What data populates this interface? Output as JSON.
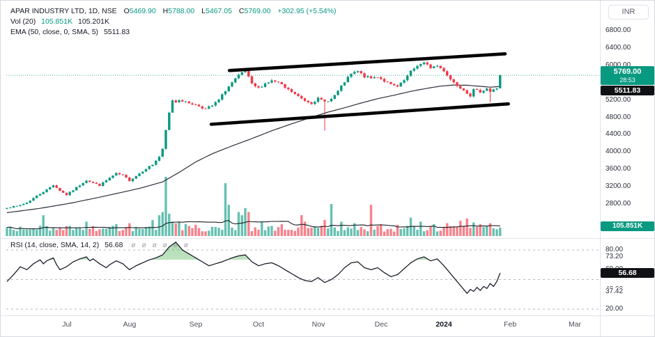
{
  "header": {
    "title": "APAR INDUSTRY LTD, 1D, NSE",
    "ohlc": [
      {
        "label": "O",
        "value": "5469.90"
      },
      {
        "label": "H",
        "value": "5788.00"
      },
      {
        "label": "L",
        "value": "5467.05"
      },
      {
        "label": "C",
        "value": "5769.00"
      }
    ],
    "change": "+302.95 (+5.54%)",
    "vol_label": "Vol (20)",
    "vol_value": "105.851K",
    "vol_ma_value": "105.201K",
    "ema_label": "EMA (50, close, 0, SMA, 5)",
    "ema_value": "5511.83"
  },
  "rsi_legend": {
    "label": "RSI (14, close, SMA, 14, 2)",
    "value": "56.68",
    "ghosts": [
      "ø",
      "ø",
      "ø",
      "ø",
      "ø",
      "ø"
    ]
  },
  "price_axis": {
    "currency": "INR",
    "ticks": [
      {
        "label": "6800.00",
        "value": 6800
      },
      {
        "label": "6400.00",
        "value": 6400
      },
      {
        "label": "6000.00",
        "value": 6000
      },
      {
        "label": "5600.00",
        "value": 5600
      },
      {
        "label": "5200.00",
        "value": 5200
      },
      {
        "label": "4800.00",
        "value": 4800
      },
      {
        "label": "4400.00",
        "value": 4400
      },
      {
        "label": "4000.00",
        "value": 4000
      },
      {
        "label": "3600.00",
        "value": 3600
      },
      {
        "label": "3200.00",
        "value": 3200
      },
      {
        "label": "2800.00",
        "value": 2800
      }
    ],
    "last_price_badge": {
      "price": "5769.00",
      "countdown": "28:53"
    },
    "ema_badge": "5511.83",
    "volume_badge": "105.851K"
  },
  "rsi_axis": {
    "ticks": [
      {
        "label": "80.00",
        "value": 80
      },
      {
        "label": "73.20",
        "value": 73.2
      },
      {
        "label": "60.00",
        "value": 60
      },
      {
        "label": "40.00",
        "value": 40
      },
      {
        "label": "37.42",
        "value": 37.42
      },
      {
        "label": "20.00",
        "value": 20
      }
    ],
    "badge": "56.68"
  },
  "time_axis": {
    "labels": [
      {
        "text": "Jul",
        "day": 18
      },
      {
        "text": "Aug",
        "day": 37
      },
      {
        "text": "Sep",
        "day": 57
      },
      {
        "text": "Oct",
        "day": 76
      },
      {
        "text": "Nov",
        "day": 94
      },
      {
        "text": "Dec",
        "day": 113
      },
      {
        "text": "2024",
        "day": 132,
        "bold": true
      },
      {
        "text": "Feb",
        "day": 152
      },
      {
        "text": "Mar",
        "day": 171.5
      }
    ]
  },
  "chart_data": {
    "type": "candlestick",
    "title": "APAR INDUSTRY LTD daily with volume, EMA(50), RSI(14) and hand-drawn ascending channel",
    "symbol": "APAR INDUSTRY LTD",
    "interval": "1D",
    "exchange": "NSE",
    "candle_count": 150,
    "price_axis_range": [
      2800,
      6800
    ],
    "price_tick_step": 400,
    "last_candle": {
      "open": 5469.9,
      "high": 5788.0,
      "low": 5467.05,
      "close": 5769.0,
      "volume_k": 105.851
    },
    "last_price": 5769.0,
    "close_waypoints": [
      [
        0,
        2720
      ],
      [
        3,
        2750
      ],
      [
        6,
        2830
      ],
      [
        9,
        2990
      ],
      [
        12,
        3130
      ],
      [
        14,
        3240
      ],
      [
        16,
        3110
      ],
      [
        18,
        3010
      ],
      [
        21,
        3180
      ],
      [
        24,
        3350
      ],
      [
        26,
        3290
      ],
      [
        28,
        3230
      ],
      [
        31,
        3400
      ],
      [
        33,
        3500
      ],
      [
        35,
        3460
      ],
      [
        37,
        3340
      ],
      [
        39,
        3450
      ],
      [
        42,
        3620
      ],
      [
        44,
        3710
      ],
      [
        46,
        3890
      ],
      [
        47,
        4060
      ],
      [
        48,
        4500
      ],
      [
        49,
        4900
      ],
      [
        50,
        5200
      ],
      [
        51,
        5150
      ],
      [
        52,
        5210
      ],
      [
        54,
        5150
      ],
      [
        56,
        5110
      ],
      [
        58,
        5060
      ],
      [
        60,
        4990
      ],
      [
        62,
        5070
      ],
      [
        64,
        5200
      ],
      [
        66,
        5420
      ],
      [
        68,
        5600
      ],
      [
        70,
        5760
      ],
      [
        72,
        5880
      ],
      [
        74,
        5560
      ],
      [
        76,
        5470
      ],
      [
        78,
        5580
      ],
      [
        80,
        5640
      ],
      [
        82,
        5600
      ],
      [
        84,
        5480
      ],
      [
        86,
        5390
      ],
      [
        88,
        5280
      ],
      [
        90,
        5190
      ],
      [
        92,
        5130
      ],
      [
        94,
        5230
      ],
      [
        96,
        5160
      ],
      [
        98,
        5220
      ],
      [
        100,
        5400
      ],
      [
        102,
        5620
      ],
      [
        104,
        5800
      ],
      [
        106,
        5860
      ],
      [
        108,
        5740
      ],
      [
        110,
        5700
      ],
      [
        112,
        5740
      ],
      [
        114,
        5640
      ],
      [
        116,
        5550
      ],
      [
        118,
        5500
      ],
      [
        120,
        5650
      ],
      [
        122,
        5850
      ],
      [
        124,
        6000
      ],
      [
        126,
        6050
      ],
      [
        128,
        5950
      ],
      [
        130,
        5990
      ],
      [
        132,
        5880
      ],
      [
        134,
        5680
      ],
      [
        136,
        5540
      ],
      [
        138,
        5440
      ],
      [
        140,
        5300
      ],
      [
        141,
        5430
      ],
      [
        143,
        5390
      ],
      [
        145,
        5470
      ],
      [
        146,
        5390
      ],
      [
        147,
        5430
      ],
      [
        148,
        5470
      ],
      [
        149,
        5769
      ]
    ],
    "wick_events": [
      [
        96,
        4490
      ],
      [
        146,
        5150
      ]
    ],
    "ema": {
      "period": 50,
      "last_value": 5511.83,
      "waypoints": [
        [
          0,
          2600
        ],
        [
          10,
          2700
        ],
        [
          20,
          2830
        ],
        [
          30,
          2990
        ],
        [
          40,
          3160
        ],
        [
          47,
          3310
        ],
        [
          52,
          3530
        ],
        [
          57,
          3770
        ],
        [
          62,
          3960
        ],
        [
          68,
          4140
        ],
        [
          74,
          4310
        ],
        [
          80,
          4490
        ],
        [
          86,
          4650
        ],
        [
          92,
          4800
        ],
        [
          97,
          4920
        ],
        [
          102,
          5020
        ],
        [
          107,
          5130
        ],
        [
          112,
          5230
        ],
        [
          117,
          5310
        ],
        [
          122,
          5400
        ],
        [
          127,
          5470
        ],
        [
          131,
          5520
        ],
        [
          135,
          5545
        ],
        [
          139,
          5540
        ],
        [
          143,
          5515
        ],
        [
          146,
          5495
        ],
        [
          149,
          5512
        ]
      ]
    },
    "volume": {
      "ma_period": 20,
      "last_k": 105.851,
      "ma_last_k": 105.201,
      "base_range_k": [
        55,
        130
      ],
      "spikes_k": [
        [
          11,
          260
        ],
        [
          24,
          180
        ],
        [
          33,
          150
        ],
        [
          37,
          160
        ],
        [
          44,
          200
        ],
        [
          46,
          260
        ],
        [
          47,
          300
        ],
        [
          48,
          740
        ],
        [
          49,
          280
        ],
        [
          50,
          180
        ],
        [
          51,
          160
        ],
        [
          52,
          170
        ],
        [
          54,
          150
        ],
        [
          57,
          140
        ],
        [
          66,
          660
        ],
        [
          67,
          390
        ],
        [
          70,
          300
        ],
        [
          71,
          260
        ],
        [
          72,
          350
        ],
        [
          73,
          300
        ],
        [
          77,
          180
        ],
        [
          83,
          150
        ],
        [
          89,
          260
        ],
        [
          90,
          180
        ],
        [
          96,
          200
        ],
        [
          98,
          400
        ],
        [
          101,
          180
        ],
        [
          105,
          160
        ],
        [
          110,
          390
        ],
        [
          113,
          150
        ],
        [
          118,
          140
        ],
        [
          122,
          230
        ],
        [
          125,
          180
        ],
        [
          129,
          150
        ],
        [
          133,
          160
        ],
        [
          137,
          190
        ],
        [
          139,
          220
        ],
        [
          141,
          170
        ],
        [
          143,
          150
        ],
        [
          146,
          160
        ],
        [
          149,
          105.851
        ]
      ]
    },
    "rsi": {
      "last_value": 56.68,
      "overbought_fill_above": 70,
      "dashed_levels": [
        80,
        50,
        20
      ],
      "waypoints": [
        [
          0,
          48
        ],
        [
          2,
          55
        ],
        [
          4,
          63
        ],
        [
          6,
          60
        ],
        [
          8,
          66
        ],
        [
          10,
          70
        ],
        [
          11,
          66
        ],
        [
          12,
          69
        ],
        [
          14,
          72
        ],
        [
          15,
          65
        ],
        [
          16,
          60
        ],
        [
          18,
          63
        ],
        [
          20,
          68
        ],
        [
          22,
          71
        ],
        [
          24,
          73
        ],
        [
          25,
          69
        ],
        [
          26,
          71
        ],
        [
          28,
          66
        ],
        [
          30,
          62
        ],
        [
          31,
          65
        ],
        [
          33,
          69
        ],
        [
          35,
          66
        ],
        [
          37,
          60
        ],
        [
          39,
          64
        ],
        [
          41,
          67
        ],
        [
          43,
          70
        ],
        [
          45,
          72
        ],
        [
          47,
          75
        ],
        [
          49,
          83
        ],
        [
          51,
          88
        ],
        [
          53,
          80
        ],
        [
          55,
          76
        ],
        [
          57,
          72
        ],
        [
          59,
          68
        ],
        [
          61,
          64
        ],
        [
          63,
          66
        ],
        [
          65,
          68
        ],
        [
          68,
          72
        ],
        [
          70,
          74
        ],
        [
          72,
          75
        ],
        [
          74,
          68
        ],
        [
          76,
          64
        ],
        [
          78,
          66
        ],
        [
          80,
          67
        ],
        [
          82,
          64
        ],
        [
          84,
          60
        ],
        [
          86,
          56
        ],
        [
          88,
          52
        ],
        [
          90,
          49
        ],
        [
          92,
          48
        ],
        [
          94,
          52
        ],
        [
          96,
          47
        ],
        [
          98,
          50
        ],
        [
          100,
          55
        ],
        [
          102,
          62
        ],
        [
          104,
          67
        ],
        [
          106,
          68
        ],
        [
          108,
          62
        ],
        [
          110,
          60
        ],
        [
          112,
          62
        ],
        [
          114,
          57
        ],
        [
          116,
          53
        ],
        [
          118,
          55
        ],
        [
          120,
          61
        ],
        [
          122,
          67
        ],
        [
          124,
          71
        ],
        [
          126,
          73
        ],
        [
          128,
          69
        ],
        [
          130,
          71
        ],
        [
          132,
          64
        ],
        [
          134,
          56
        ],
        [
          136,
          48
        ],
        [
          138,
          40
        ],
        [
          139,
          36
        ],
        [
          140,
          40
        ],
        [
          141,
          38
        ],
        [
          142,
          42
        ],
        [
          143,
          39
        ],
        [
          144,
          43
        ],
        [
          145,
          41
        ],
        [
          146,
          46
        ],
        [
          147,
          43
        ],
        [
          148,
          48
        ],
        [
          149,
          56.68
        ]
      ]
    },
    "trend_channel": {
      "upper_day_price": [
        [
          67.2,
          5880
        ],
        [
          150.5,
          6265
        ]
      ],
      "lower_day_price": [
        [
          61.7,
          4640
        ],
        [
          151.5,
          5110
        ]
      ]
    },
    "colors": {
      "up": "#089981",
      "down": "#f23645",
      "accent": "#089981",
      "ema_line": "#2a2e39",
      "rsi_line": "#131722",
      "rsi_fill": "#4caf50",
      "trendline": "#000000",
      "dashed_grid": "#b7bac1",
      "separator": "#e0e3eb"
    }
  }
}
